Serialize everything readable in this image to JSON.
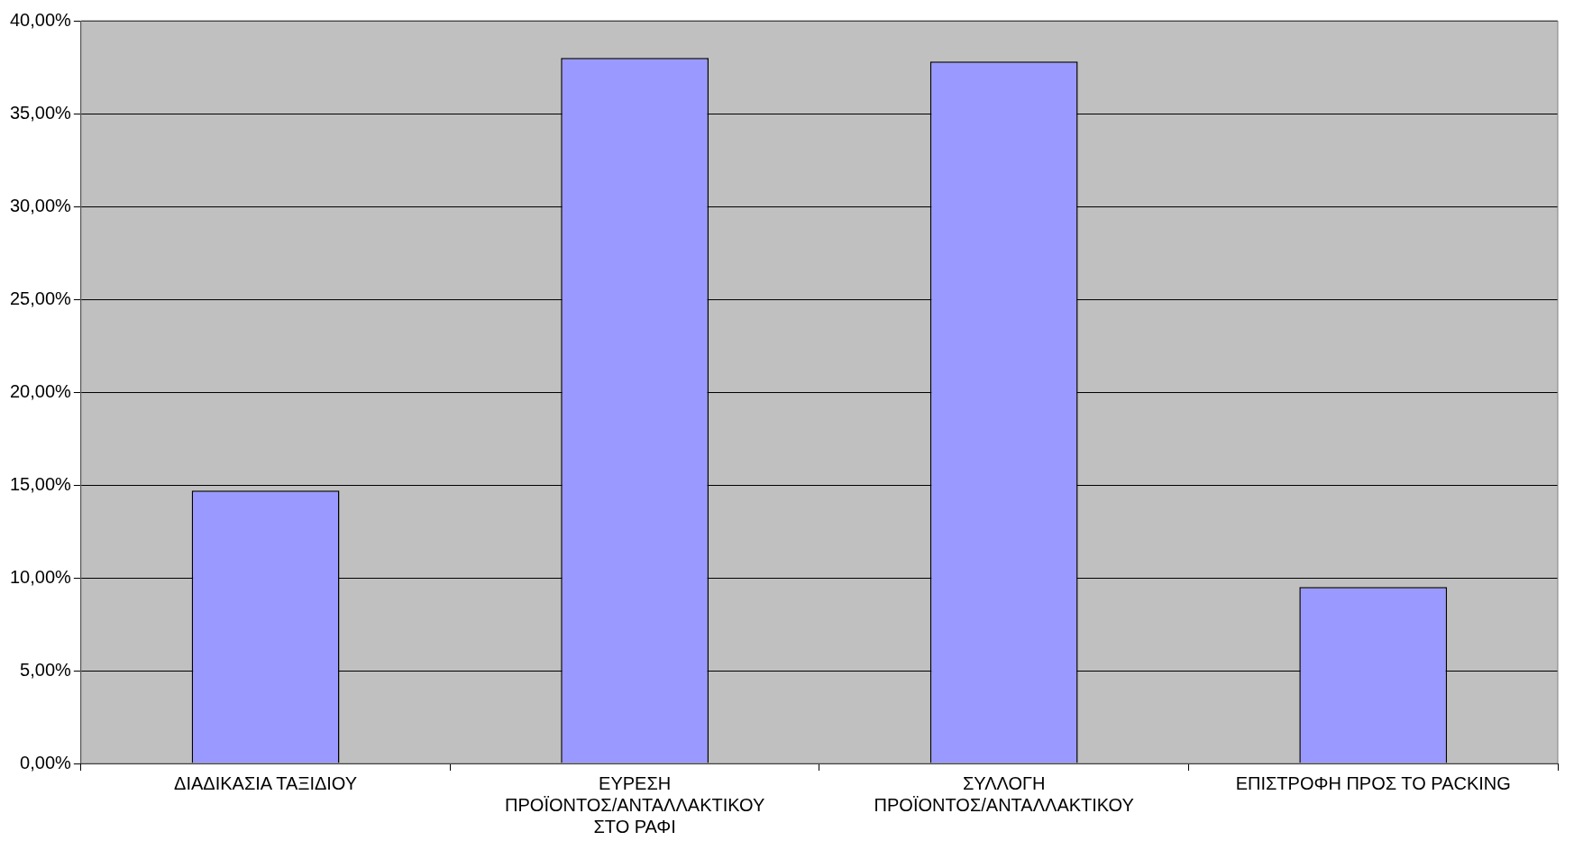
{
  "chart_data": {
    "type": "bar",
    "categories": [
      "ΔΙΑΔΙΚΑΣΙΑ ΤΑΞΙΔΙΟΥ",
      "ΕΥΡΕΣΗ ΠΡΟΪΟΝΤΟΣ/ΑΝΤΑΛΛΑΚΤΙΚΟΥ ΣΤΟ ΡΑΦΙ",
      "ΣΥΛΛΟΓΗ ΠΡΟΪΟΝΤΟΣ/ΑΝΤΑΛΛΑΚΤΙΚΟΥ",
      "ΕΠΙΣΤΡΟΦΗ ΠΡΟΣ ΤΟ PACKING"
    ],
    "values": [
      14.7,
      38.0,
      37.8,
      9.5
    ],
    "color": "#9999ff",
    "ylim": [
      0,
      40
    ],
    "yticks": [
      {
        "value": 0,
        "label": "0,00%"
      },
      {
        "value": 5,
        "label": "5,00%"
      },
      {
        "value": 10,
        "label": "10,00%"
      },
      {
        "value": 15,
        "label": "15,00%"
      },
      {
        "value": 20,
        "label": "20,00%"
      },
      {
        "value": 25,
        "label": "25,00%"
      },
      {
        "value": 30,
        "label": "30,00%"
      },
      {
        "value": 35,
        "label": "35,00%"
      },
      {
        "value": 40,
        "label": "40,00%"
      }
    ],
    "grid": "y",
    "legend": false
  }
}
